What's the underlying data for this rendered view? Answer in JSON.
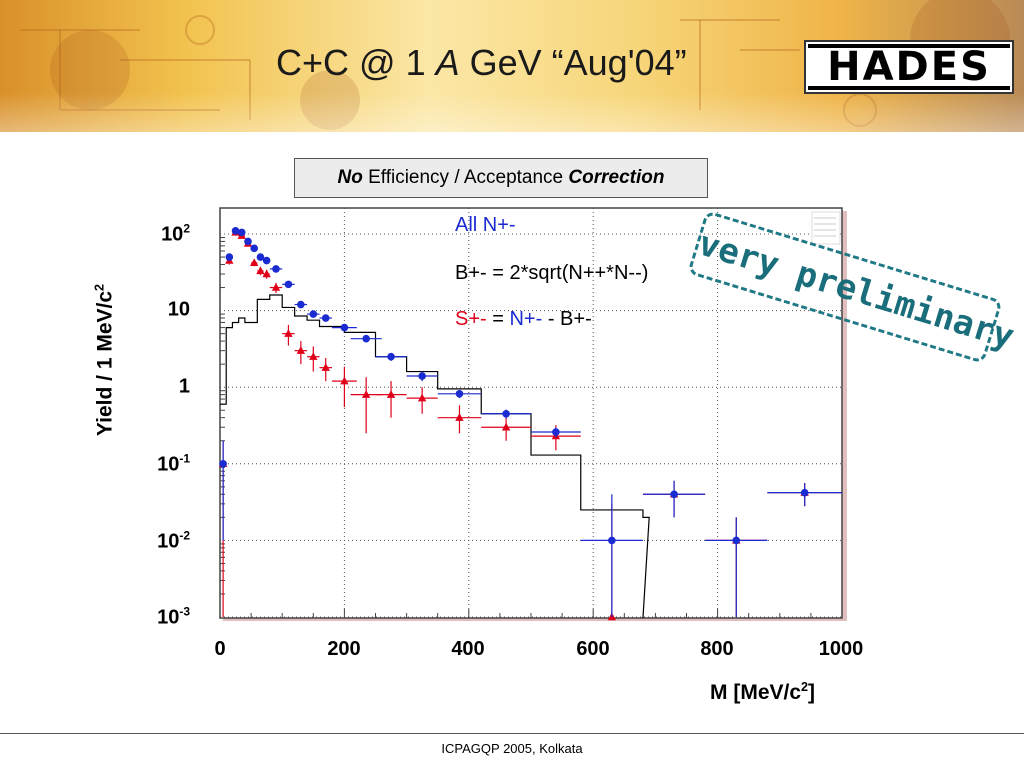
{
  "slide": {
    "title_pre": "C+C @ 1 ",
    "title_italic": "A",
    "title_post": " GeV “Aug'04”",
    "logo_text": "HADES",
    "footer": "ICPAGQP 2005, Kolkata",
    "stamp": "very preliminary"
  },
  "correction_box": {
    "no": "No",
    "middle": " Efficiency / Acceptance ",
    "correction": "Correction"
  },
  "legend": {
    "all": "All N+-",
    "b_def": "B+- = 2*sqrt(N++*N--)",
    "s_label": "S+-",
    "s_eq": " = ",
    "s_n": "N+-",
    "s_rest": "  - B+-"
  },
  "colors": {
    "all_series": "#1a2bd1",
    "signal_series": "#e0001a",
    "background_hist": "#000000",
    "stamp": "#1f7a86"
  },
  "chart_data": {
    "type": "scatter",
    "xlabel": "M [MeV/c²]",
    "ylabel": "Yield / 1 MeV/c²",
    "xlim": [
      0,
      1000
    ],
    "ylim": [
      0.001,
      200
    ],
    "yscale": "log",
    "grid": true,
    "x_ticks": [
      "0",
      "200",
      "400",
      "600",
      "800",
      "1000"
    ],
    "y_ticks": [
      {
        "base": "10",
        "exp": "2"
      },
      {
        "base": "10",
        "exp": ""
      },
      {
        "base": "1",
        "exp": ""
      },
      {
        "base": "10",
        "exp": "-1"
      },
      {
        "base": "10",
        "exp": "-2"
      },
      {
        "base": "10",
        "exp": "-3"
      }
    ],
    "y_tick_values": [
      100,
      10,
      1,
      0.1,
      0.01,
      0.001
    ],
    "series": [
      {
        "name": "All N+-",
        "marker": "circle",
        "points": [
          {
            "x": 5,
            "y": 0.1,
            "xerr": 0,
            "ylo": 0.01,
            "yhi": 0.2
          },
          {
            "x": 15,
            "y": 50,
            "xerr": 0,
            "ylo": 45,
            "yhi": 55
          },
          {
            "x": 25,
            "y": 110,
            "xerr": 5,
            "ylo": 105,
            "yhi": 115
          },
          {
            "x": 35,
            "y": 105,
            "xerr": 5,
            "ylo": 100,
            "yhi": 110
          },
          {
            "x": 45,
            "y": 80,
            "xerr": 5,
            "ylo": 75,
            "yhi": 85
          },
          {
            "x": 55,
            "y": 65,
            "xerr": 5,
            "ylo": 60,
            "yhi": 70
          },
          {
            "x": 65,
            "y": 50,
            "xerr": 5,
            "ylo": 46,
            "yhi": 54
          },
          {
            "x": 75,
            "y": 45,
            "xerr": 5,
            "ylo": 41,
            "yhi": 49
          },
          {
            "x": 90,
            "y": 35,
            "xerr": 10,
            "ylo": 32,
            "yhi": 38
          },
          {
            "x": 110,
            "y": 22,
            "xerr": 10,
            "ylo": 20,
            "yhi": 24
          },
          {
            "x": 130,
            "y": 12,
            "xerr": 10,
            "ylo": 11,
            "yhi": 13
          },
          {
            "x": 150,
            "y": 9,
            "xerr": 10,
            "ylo": 8.3,
            "yhi": 9.7
          },
          {
            "x": 170,
            "y": 8,
            "xerr": 10,
            "ylo": 7.3,
            "yhi": 8.7
          },
          {
            "x": 200,
            "y": 6,
            "xerr": 20,
            "ylo": 5.5,
            "yhi": 6.5
          },
          {
            "x": 235,
            "y": 4.3,
            "xerr": 25,
            "ylo": 3.9,
            "yhi": 4.7
          },
          {
            "x": 275,
            "y": 2.5,
            "xerr": 25,
            "ylo": 2.2,
            "yhi": 2.8
          },
          {
            "x": 325,
            "y": 1.4,
            "xerr": 25,
            "ylo": 1.2,
            "yhi": 1.6
          },
          {
            "x": 385,
            "y": 0.82,
            "xerr": 35,
            "ylo": 0.72,
            "yhi": 0.92
          },
          {
            "x": 460,
            "y": 0.45,
            "xerr": 40,
            "ylo": 0.39,
            "yhi": 0.51
          },
          {
            "x": 540,
            "y": 0.26,
            "xerr": 40,
            "ylo": 0.22,
            "yhi": 0.3
          },
          {
            "x": 630,
            "y": 0.01,
            "xerr": 50,
            "ylo": 0.001,
            "yhi": 0.04
          },
          {
            "x": 730,
            "y": 0.04,
            "xerr": 50,
            "ylo": 0.02,
            "yhi": 0.06
          },
          {
            "x": 830,
            "y": 0.01,
            "xerr": 50,
            "ylo": 0.001,
            "yhi": 0.02
          },
          {
            "x": 940,
            "y": 0.042,
            "xerr": 60,
            "ylo": 0.028,
            "yhi": 0.056
          }
        ]
      },
      {
        "name": "S+-",
        "marker": "triangle",
        "points": [
          {
            "x": 5,
            "y": 0.1,
            "xerr": 0,
            "ylo": 0.001,
            "yhi": 0.2
          },
          {
            "x": 15,
            "y": 45,
            "xerr": 0,
            "ylo": 40,
            "yhi": 50
          },
          {
            "x": 25,
            "y": 105,
            "xerr": 5,
            "ylo": 100,
            "yhi": 110
          },
          {
            "x": 35,
            "y": 95,
            "xerr": 5,
            "ylo": 90,
            "yhi": 100
          },
          {
            "x": 45,
            "y": 75,
            "xerr": 5,
            "ylo": 70,
            "yhi": 80
          },
          {
            "x": 55,
            "y": 42,
            "xerr": 5,
            "ylo": 38,
            "yhi": 46
          },
          {
            "x": 65,
            "y": 33,
            "xerr": 5,
            "ylo": 29,
            "yhi": 37
          },
          {
            "x": 75,
            "y": 30,
            "xerr": 5,
            "ylo": 26,
            "yhi": 34
          },
          {
            "x": 90,
            "y": 20,
            "xerr": 10,
            "ylo": 17,
            "yhi": 23
          },
          {
            "x": 110,
            "y": 5,
            "xerr": 10,
            "ylo": 3.5,
            "yhi": 6.5
          },
          {
            "x": 130,
            "y": 3,
            "xerr": 10,
            "ylo": 2,
            "yhi": 4
          },
          {
            "x": 150,
            "y": 2.5,
            "xerr": 10,
            "ylo": 1.6,
            "yhi": 3.4
          },
          {
            "x": 170,
            "y": 1.8,
            "xerr": 10,
            "ylo": 1.2,
            "yhi": 2.4
          },
          {
            "x": 200,
            "y": 1.2,
            "xerr": 20,
            "ylo": 0.55,
            "yhi": 1.85
          },
          {
            "x": 235,
            "y": 0.8,
            "xerr": 25,
            "ylo": 0.25,
            "yhi": 1.35
          },
          {
            "x": 275,
            "y": 0.8,
            "xerr": 25,
            "ylo": 0.4,
            "yhi": 1.2
          },
          {
            "x": 325,
            "y": 0.72,
            "xerr": 25,
            "ylo": 0.45,
            "yhi": 1.0
          },
          {
            "x": 385,
            "y": 0.4,
            "xerr": 35,
            "ylo": 0.25,
            "yhi": 0.58
          },
          {
            "x": 460,
            "y": 0.3,
            "xerr": 40,
            "ylo": 0.2,
            "yhi": 0.4
          },
          {
            "x": 540,
            "y": 0.23,
            "xerr": 40,
            "ylo": 0.15,
            "yhi": 0.32
          },
          {
            "x": 630,
            "y": 0.001,
            "xerr": 0,
            "ylo": 0.001,
            "yhi": 0.03
          },
          {
            "x": 730,
            "y": 0.04,
            "xerr": 50,
            "ylo": 0.02,
            "yhi": 0.06
          },
          {
            "x": 830,
            "y": 0.01,
            "xerr": 50,
            "ylo": 0.001,
            "yhi": 0.02
          },
          {
            "x": 940,
            "y": 0.042,
            "xerr": 60,
            "ylo": 0.028,
            "yhi": 0.056
          }
        ]
      },
      {
        "name": "B+-",
        "type": "step",
        "edges": [
          0,
          10,
          20,
          30,
          40,
          60,
          80,
          100,
          120,
          140,
          160,
          200,
          250,
          300,
          350,
          420,
          500,
          580,
          680
        ],
        "values": [
          0.6,
          6,
          7,
          8,
          7,
          14,
          16,
          11,
          8.5,
          7.5,
          6.2,
          5.2,
          2.5,
          1.6,
          0.95,
          0.45,
          0.13,
          0.025,
          0.02
        ]
      }
    ]
  }
}
